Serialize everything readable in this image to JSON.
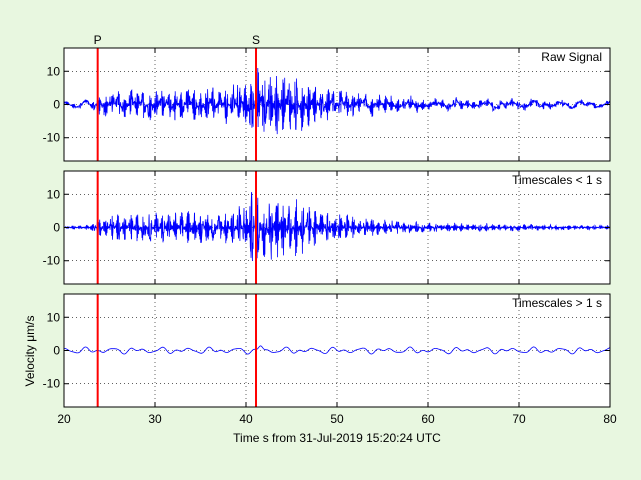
{
  "chart_data": {
    "type": "line",
    "xlabel": "Time s from 31-Jul-2019 15:20:24 UTC",
    "ylabel": "Velocity μm/s",
    "xlim": [
      20,
      80
    ],
    "xticks": [
      "20",
      "30",
      "40",
      "50",
      "60",
      "70",
      "80"
    ],
    "grid": true,
    "colors": {
      "signal": "#0000ff",
      "pick": "#ff0000",
      "background": "#e8f7e0",
      "axes": "#ffffff"
    },
    "picks": [
      {
        "label": "P",
        "time": 23.7
      },
      {
        "label": "S",
        "time": 41.1
      }
    ],
    "panels": [
      {
        "label": "Raw Signal",
        "ylim": [
          -17,
          17
        ],
        "yticks": [
          "10",
          "0",
          "-10"
        ],
        "envelope": [
          [
            20,
            0.6
          ],
          [
            23,
            1
          ],
          [
            23.5,
            3
          ],
          [
            25,
            4
          ],
          [
            30,
            4.5
          ],
          [
            33,
            5
          ],
          [
            35,
            5
          ],
          [
            38,
            5.5
          ],
          [
            39.5,
            7
          ],
          [
            40.5,
            11
          ],
          [
            42,
            11
          ],
          [
            44,
            9
          ],
          [
            46,
            9
          ],
          [
            48,
            5
          ],
          [
            50,
            5
          ],
          [
            53,
            3
          ],
          [
            58,
            2.2
          ],
          [
            62,
            1.6
          ],
          [
            66,
            1.5
          ],
          [
            70,
            1.3
          ],
          [
            75,
            1
          ],
          [
            80,
            0.8
          ]
        ],
        "lowfreq_amplitude": 0.9
      },
      {
        "label": "Timescales < 1 s",
        "ylim": [
          -17,
          17
        ],
        "yticks": [
          "10",
          "0",
          "-10"
        ],
        "envelope": [
          [
            20,
            0.4
          ],
          [
            23,
            0.8
          ],
          [
            23.5,
            3
          ],
          [
            25,
            4
          ],
          [
            30,
            4.5
          ],
          [
            33,
            5
          ],
          [
            35,
            5
          ],
          [
            38,
            5.5
          ],
          [
            39.5,
            7
          ],
          [
            40.5,
            11
          ],
          [
            42,
            11
          ],
          [
            44,
            9
          ],
          [
            46,
            9
          ],
          [
            48,
            5
          ],
          [
            50,
            5
          ],
          [
            53,
            3
          ],
          [
            58,
            1.8
          ],
          [
            62,
            1.4
          ],
          [
            66,
            1.2
          ],
          [
            70,
            1.1
          ],
          [
            75,
            0.8
          ],
          [
            80,
            0.6
          ]
        ],
        "lowfreq_amplitude": 0
      },
      {
        "label": "Timescales > 1 s",
        "ylim": [
          -17,
          17
        ],
        "yticks": [
          "10",
          "0",
          "-10"
        ],
        "envelope": [
          [
            20,
            0
          ],
          [
            80,
            0
          ]
        ],
        "lowfreq_amplitude": 0.9
      }
    ]
  }
}
